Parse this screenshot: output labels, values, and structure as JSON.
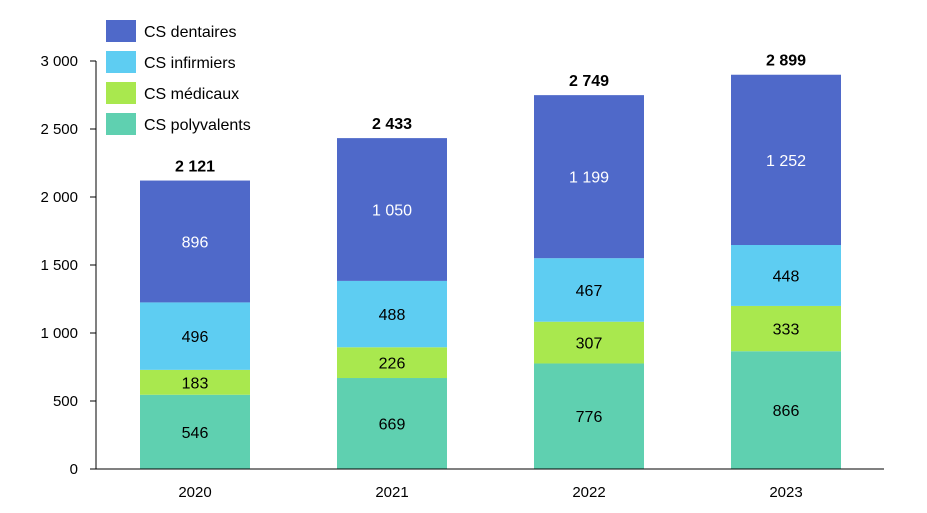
{
  "chart_data": {
    "type": "bar",
    "stacked": true,
    "categories": [
      "2020",
      "2021",
      "2022",
      "2023"
    ],
    "series": [
      {
        "name": "CS polyvalents",
        "color": "#5fd0b0",
        "label_color": "#000000",
        "values": [
          546,
          669,
          776,
          866
        ],
        "labels": [
          "546",
          "669",
          "776",
          "866"
        ]
      },
      {
        "name": "CS médicaux",
        "color": "#a9e84e",
        "label_color": "#000000",
        "values": [
          183,
          226,
          307,
          333
        ],
        "labels": [
          "183",
          "226",
          "307",
          "333"
        ]
      },
      {
        "name": "CS infirmiers",
        "color": "#5ecdf2",
        "label_color": "#000000",
        "values": [
          496,
          488,
          467,
          448
        ],
        "labels": [
          "496",
          "488",
          "467",
          "448"
        ]
      },
      {
        "name": "CS dentaires",
        "color": "#4f69c9",
        "label_color": "#ffffff",
        "values": [
          896,
          1050,
          1199,
          1252
        ],
        "labels": [
          "896",
          "1 050",
          "1 199",
          "1 252"
        ]
      }
    ],
    "totals": [
      "2 121",
      "2 433",
      "2 749",
      "2 899"
    ],
    "ylim": [
      0,
      3000
    ],
    "yticks": [
      0,
      500,
      1000,
      1500,
      2000,
      2500,
      3000
    ],
    "ytick_labels": [
      "0",
      "500",
      "1 000",
      "1 500",
      "2 000",
      "2 500",
      "3 000"
    ],
    "legend_position": "top-left",
    "legend_order": [
      "CS dentaires",
      "CS infirmiers",
      "CS médicaux",
      "CS polyvalents"
    ],
    "grid": false
  }
}
